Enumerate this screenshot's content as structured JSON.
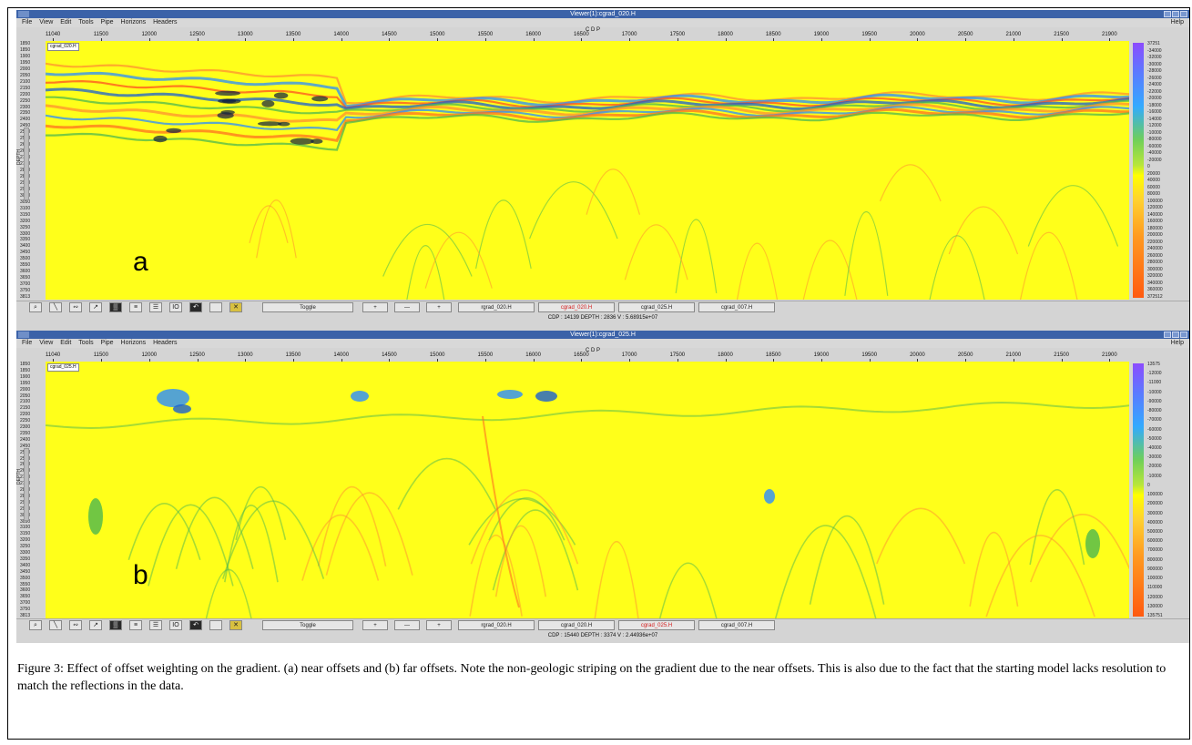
{
  "caption": "Figure 3: Effect of offset weighting on the gradient. (a) near offsets and (b) far offsets. Note the non-geologic striping on the gradient due to the near offsets. This is also due to the fact that the starting model lacks resolution to match the reflections in the data.",
  "menu": [
    "File",
    "View",
    "Edit",
    "Tools",
    "Pipe",
    "Horizons",
    "Headers"
  ],
  "help_label": "Help",
  "cdp_label": "C D P",
  "x_ticks": [
    "11040",
    "11500",
    "12000",
    "12500",
    "13000",
    "13500",
    "14000",
    "14500",
    "15000",
    "15500",
    "16000",
    "16500",
    "17000",
    "17500",
    "18000",
    "18500",
    "19000",
    "19500",
    "20000",
    "20500",
    "21000",
    "21500",
    "21900"
  ],
  "y_ticks": [
    "1850",
    "1850",
    "1900",
    "1950",
    "2000",
    "2050",
    "2100",
    "2150",
    "2200",
    "2250",
    "2300",
    "2350",
    "2400",
    "2450",
    "2500",
    "2550",
    "2600",
    "2650",
    "2700",
    "2750",
    "2800",
    "2850",
    "2900",
    "2950",
    "3000",
    "3050",
    "3100",
    "3150",
    "3200",
    "3250",
    "3300",
    "3350",
    "3400",
    "3450",
    "3500",
    "3550",
    "3600",
    "3650",
    "3700",
    "3750",
    "3813"
  ],
  "y_axis_label": "DEPTH",
  "toolbar": {
    "toggle": "Toggle",
    "plus": "+",
    "minus": "—",
    "plus2": "+"
  },
  "viewers": [
    {
      "title": "Viewer(1):cgrad_020.H",
      "inset": "cgrad_020.H",
      "letter": "a",
      "status": "CDP : 14139     DEPTH : 2836     V : 5.68915e+07",
      "pipes": [
        "rgrad_020.H",
        "cgrad_020.H",
        "cgrad_025.H",
        "cgrad_007.H"
      ],
      "active_pipe": 1,
      "scale_top": "37251",
      "scale_bottom": "372512",
      "scale_labels": [
        "-34000",
        "-32000",
        "-30000",
        "-28000",
        "-26000",
        "-24000",
        "-22000",
        "-20000",
        "-18000",
        "-16000",
        "-14000",
        "-12000",
        "-10000",
        "-80000",
        "-60000",
        "-40000",
        "-20000",
        "0",
        "20000",
        "40000",
        "60000",
        "80000",
        "100000",
        "120000",
        "140000",
        "160000",
        "180000",
        "200000",
        "220000",
        "240000",
        "260000",
        "280000",
        "300000",
        "320000",
        "340000",
        "360000"
      ]
    },
    {
      "title": "Viewer(1):cgrad_025.H",
      "inset": "cgrad_025.H",
      "letter": "b",
      "status": "CDP : 15440     DEPTH : 3374     V : 2.44936e+07",
      "pipes": [
        "rgrad_020.H",
        "cgrad_020.H",
        "cgrad_025.H",
        "cgrad_007.H"
      ],
      "active_pipe": 2,
      "scale_top": "13575",
      "scale_bottom": "135751",
      "scale_labels": [
        "-12000",
        "-11000",
        "-10000",
        "-90000",
        "-80000",
        "-70000",
        "-60000",
        "-50000",
        "-40000",
        "-30000",
        "-20000",
        "-10000",
        "0",
        "100000",
        "200000",
        "300000",
        "400000",
        "500000",
        "600000",
        "700000",
        "800000",
        "900000",
        "100000",
        "110000",
        "120000",
        "130000"
      ]
    }
  ],
  "colors": {
    "background": "#ffff1a",
    "blue": "#2a8cff",
    "dark_blue": "#102040",
    "green": "#4db84d",
    "orange": "#ff9030",
    "red": "#ff5020",
    "titlebar": "#3b62a8"
  }
}
